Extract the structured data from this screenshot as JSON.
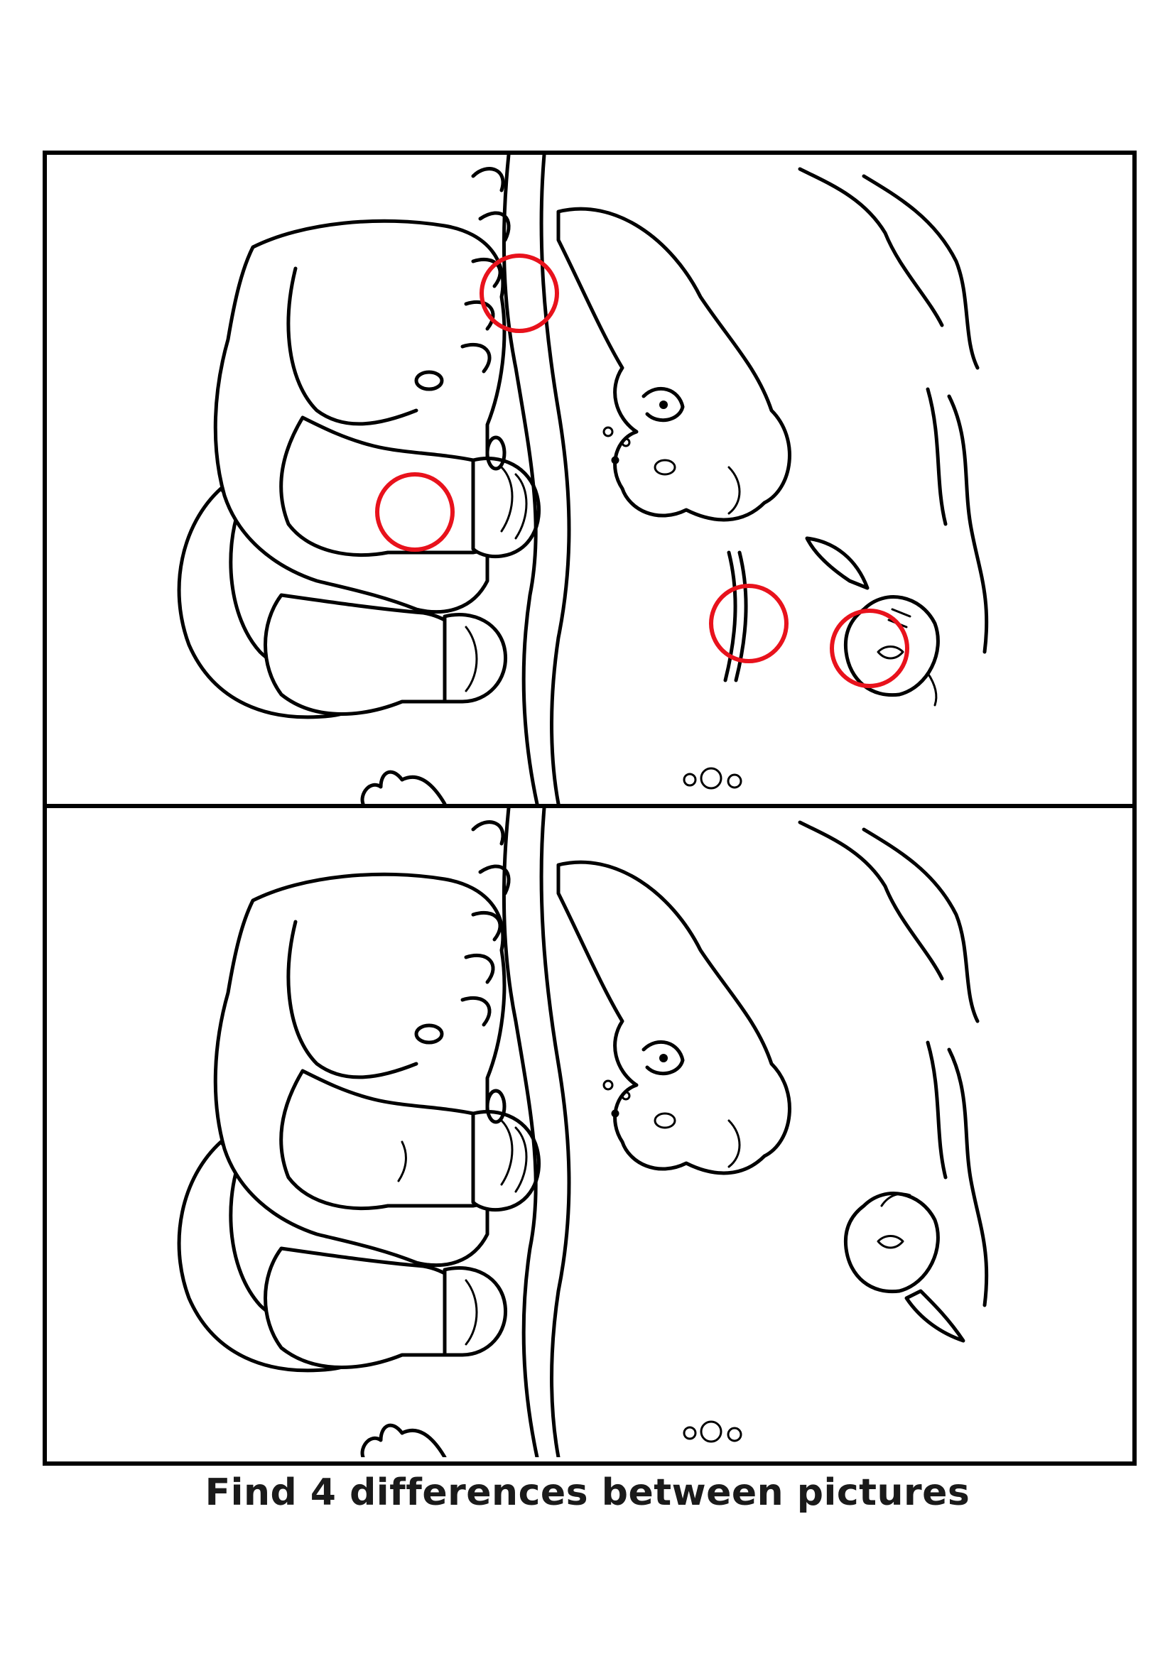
{
  "caption": "Find 4 differences between pictures",
  "colors": {
    "line": "#000000",
    "background": "#ffffff",
    "marker": "#e8121c"
  },
  "difference_markers": [
    {
      "name": "difference-marker-water-drop"
    },
    {
      "name": "difference-marker-leg-line"
    },
    {
      "name": "difference-marker-water-ripple"
    },
    {
      "name": "difference-marker-fish"
    }
  ]
}
